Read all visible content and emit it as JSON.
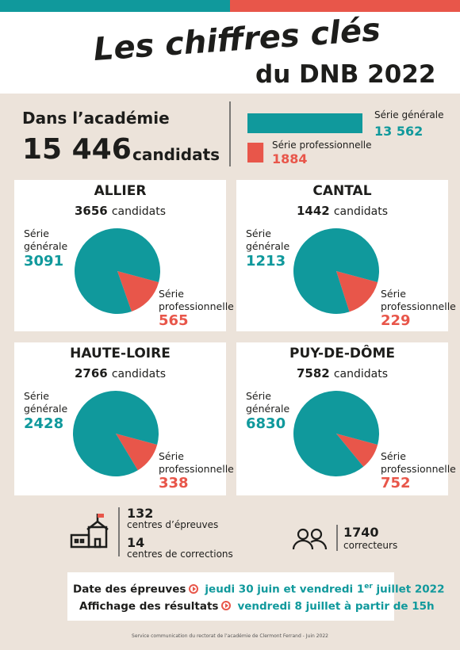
{
  "header": {
    "title": "Les chiffres clés",
    "subtitle": "du DNB 2022"
  },
  "academie": {
    "label": "Dans l’académie",
    "total": "15 446",
    "total_unit": "candidats",
    "series": [
      {
        "name": "Série générale",
        "value": 13562,
        "label": "13 562",
        "color": "#10999c"
      },
      {
        "name": "Série professionnelle",
        "value": 1884,
        "label": "1884",
        "color": "#e8564a"
      }
    ]
  },
  "departements": [
    {
      "name": "ALLIER",
      "candidats": 3656,
      "values": [
        3091,
        565
      ]
    },
    {
      "name": "CANTAL",
      "candidats": 1442,
      "values": [
        1213,
        229
      ]
    },
    {
      "name": "HAUTE-LOIRE",
      "candidats": 2766,
      "values": [
        2428,
        338
      ]
    },
    {
      "name": "PUY-DE-DÔME",
      "candidats": 7582,
      "values": [
        6830,
        752
      ]
    }
  ],
  "stats": {
    "centres": [
      {
        "value": 132,
        "label": "centres d’épreuves"
      },
      {
        "value": 14,
        "label": "centres de corrections"
      }
    ],
    "correcteurs": {
      "value": 1740,
      "label": "correcteurs"
    }
  },
  "dates": [
    {
      "label": "Date des épreuves",
      "text": "jeudi 30 juin et vendredi 1",
      "sup": "er",
      "text_end": " juillet 2022"
    },
    {
      "label": "Affichage des résultats",
      "text": "vendredi 8 juillet à partir de 15h"
    }
  ],
  "footer": "Service communication du rectorat de l’académie de Clermont Ferrand - Juin 2022"
}
